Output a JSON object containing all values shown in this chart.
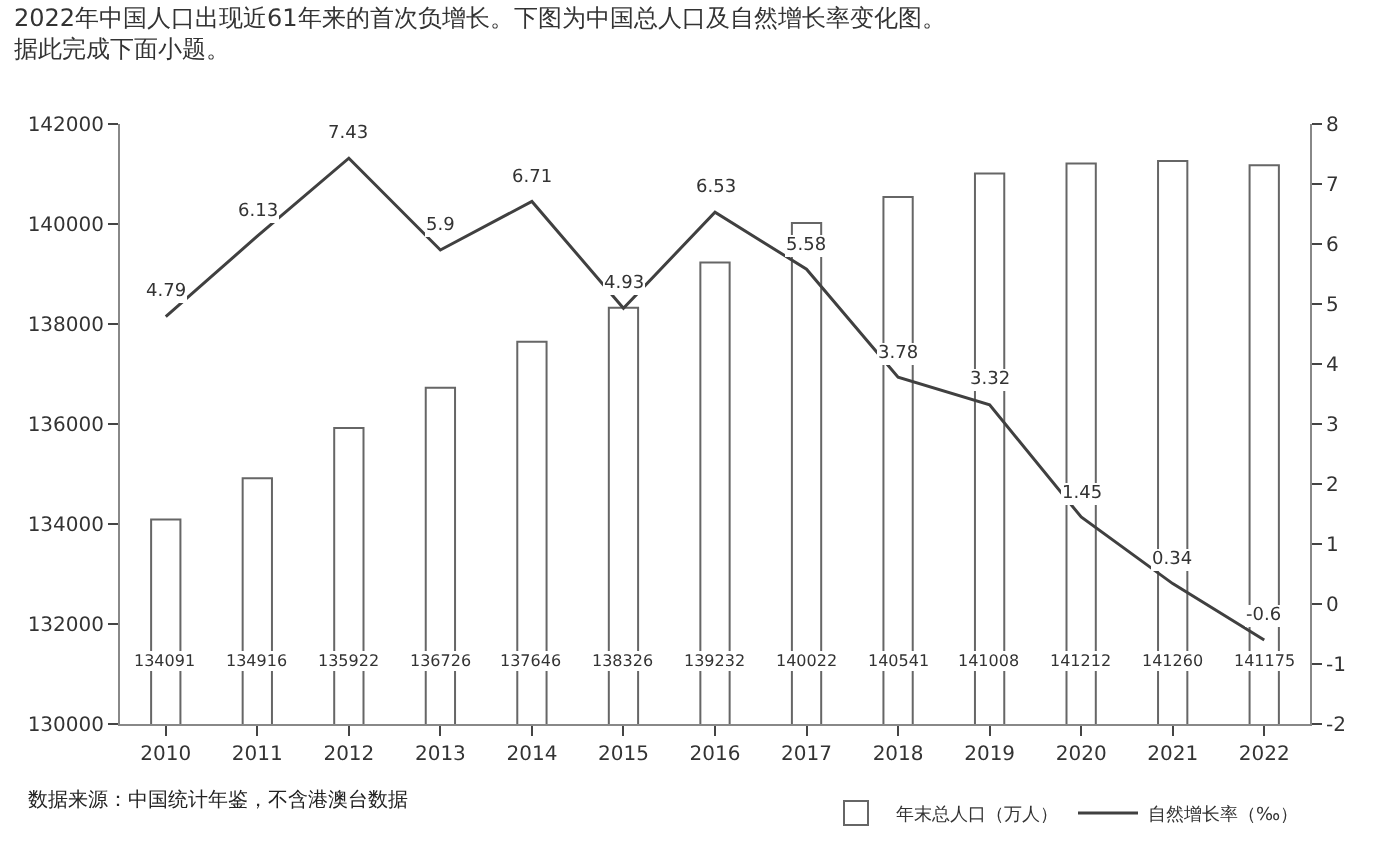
{
  "chart_data": {
    "type": "bar",
    "title": "2022年中国人口出现近61年来的首次负增长。下图为中国总人口及自然增长率变化图。",
    "subtitle": "据此完成下面小题。",
    "categories": [
      "2010",
      "2011",
      "2012",
      "2013",
      "2014",
      "2015",
      "2016",
      "2017",
      "2018",
      "2019",
      "2020",
      "2021",
      "2022"
    ],
    "series": [
      {
        "name": "年末总人口（万人）",
        "color": "#ffffff",
        "values": [
          134091,
          134916,
          135922,
          136726,
          137646,
          138326,
          139232,
          140022,
          140541,
          141008,
          141212,
          141260,
          141175
        ]
      },
      {
        "name": "自然增长率（‰）",
        "type": "line",
        "axis": "y2",
        "color": "#404040",
        "values": [
          4.79,
          6.13,
          7.43,
          5.9,
          6.71,
          4.93,
          6.53,
          5.58,
          3.78,
          3.32,
          1.45,
          0.34,
          -0.6
        ]
      }
    ],
    "ylim": [
      130000,
      142000
    ],
    "yticks": [
      130000,
      132000,
      134000,
      136000,
      138000,
      140000,
      142000
    ],
    "y2lim": [
      -2,
      8
    ],
    "y2ticks": [
      -2,
      -1,
      0,
      1,
      2,
      3,
      4,
      5,
      6,
      7,
      8
    ],
    "data_labels": true,
    "grid": false,
    "legend": "bottom right",
    "marker": "none",
    "line_style": "solid",
    "annotations": [
      "数据来源：中国统计年鉴，不含港澳台数据"
    ]
  }
}
